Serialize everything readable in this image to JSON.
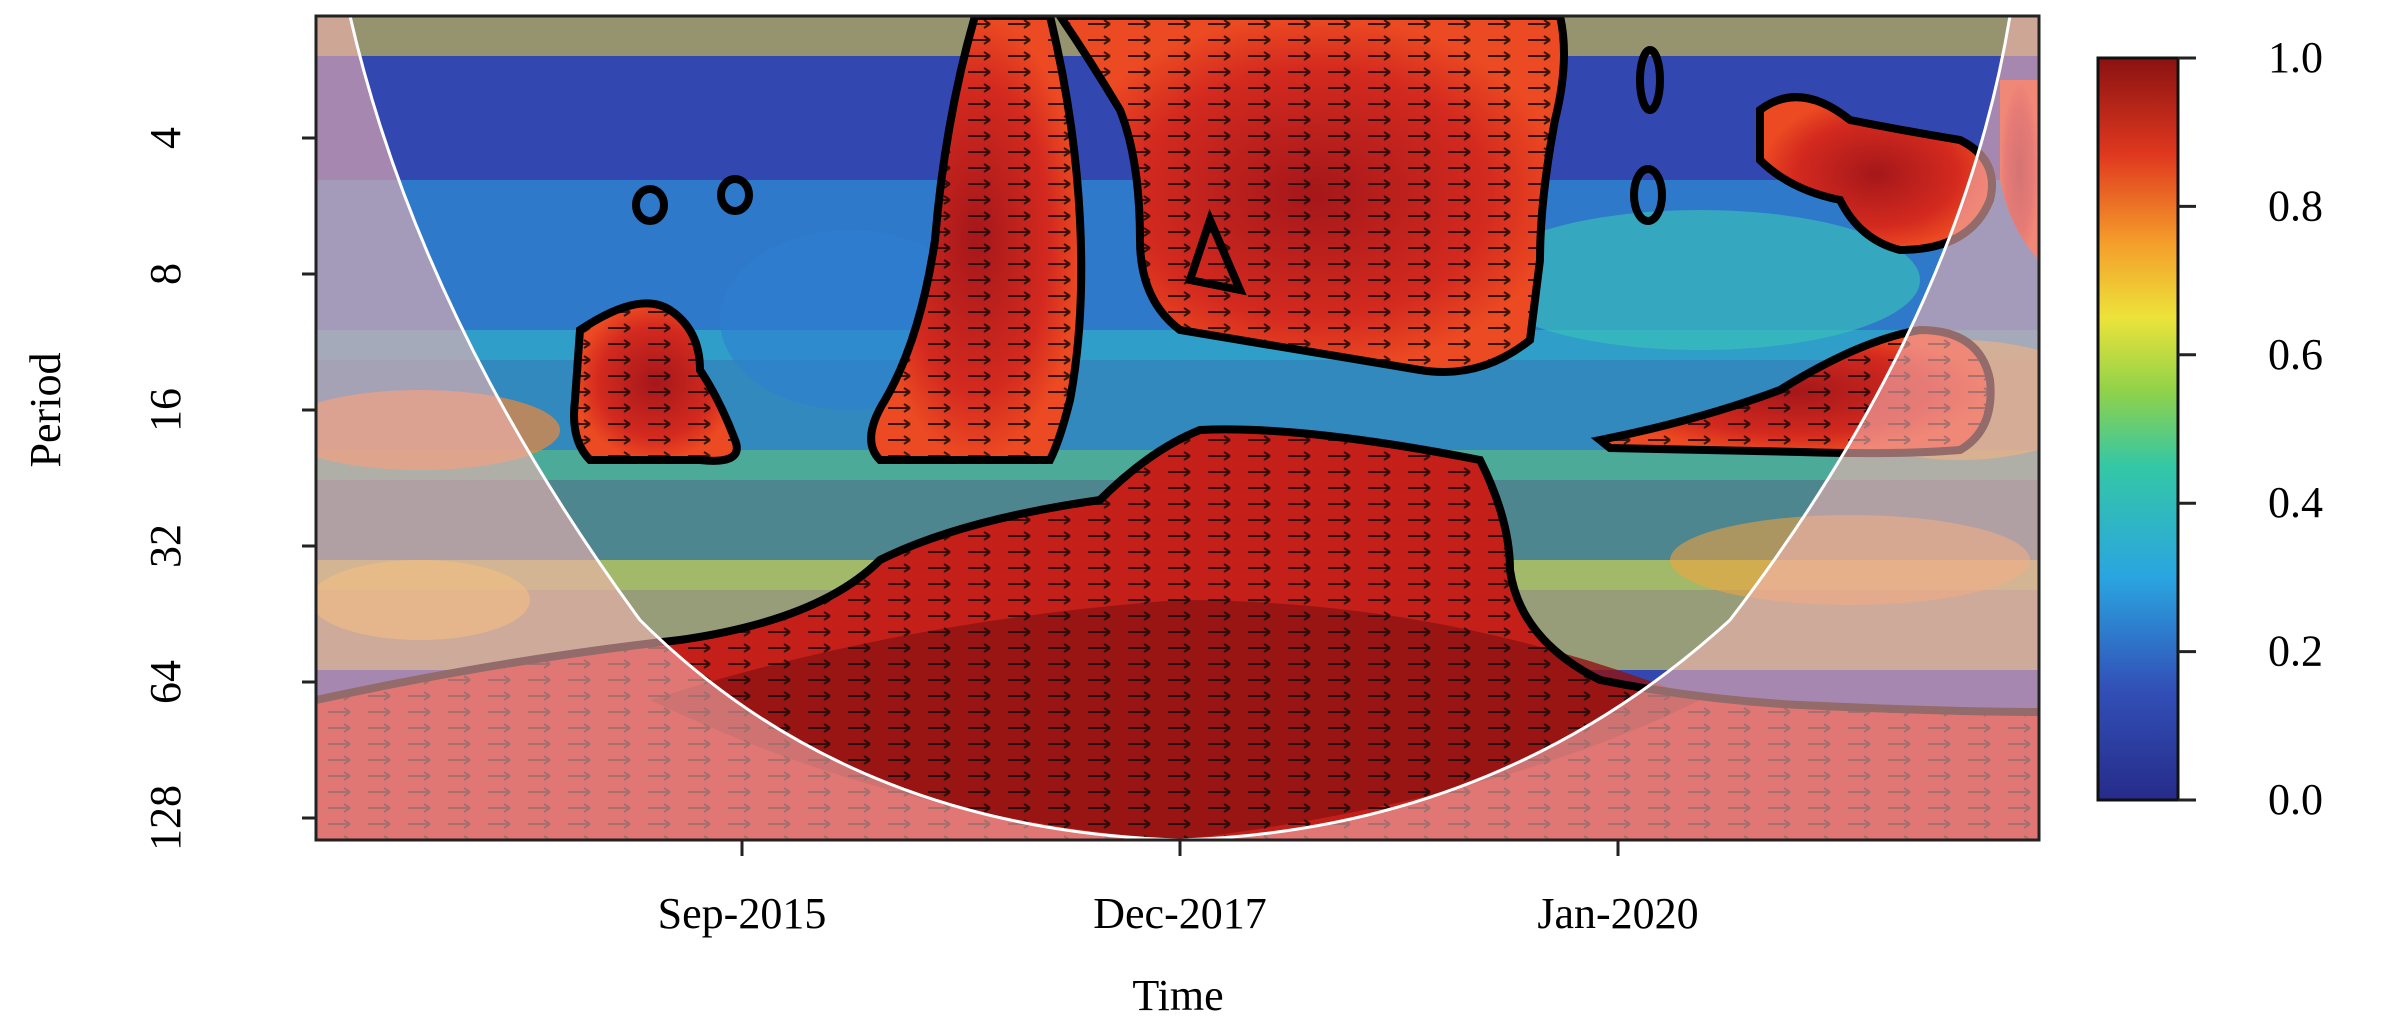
{
  "chart_data": {
    "type": "heatmap",
    "title": "",
    "xlabel": "Time",
    "ylabel": "Period",
    "x_ticks": [
      "Sep-2015",
      "Dec-2017",
      "Jan-2020"
    ],
    "y_ticks": [
      "4",
      "8",
      "16",
      "32",
      "64",
      "128"
    ],
    "y_scale": "log2",
    "colorbar": {
      "ticks": [
        "0.0",
        "0.2",
        "0.4",
        "0.6",
        "0.8",
        "1.0"
      ],
      "range": [
        0,
        1
      ],
      "colors": [
        "#2b2f8f",
        "#3a5fc8",
        "#26b5e6",
        "#36c98a",
        "#e6e33a",
        "#f39a2a",
        "#e03323",
        "#8e1414"
      ]
    },
    "regions": [
      {
        "desc": "period 64-128 band",
        "x_range": [
          "Sep-2014",
          "Jun-2022"
        ],
        "period_range": [
          64,
          128
        ],
        "coherence": 0.95
      },
      {
        "desc": "period 20-64 block",
        "x_range": [
          "Aug-2017",
          "Jun-2019"
        ],
        "period_range": [
          20,
          64
        ],
        "coherence": 0.95
      },
      {
        "desc": "period 1-16 column",
        "x_range": [
          "Jul-2016",
          "Apr-2017"
        ],
        "period_range": [
          1,
          16
        ],
        "coherence": 0.9
      },
      {
        "desc": "period 1-12 region",
        "x_range": [
          "Jan-2018",
          "Nov-2019"
        ],
        "period_range": [
          1,
          12
        ],
        "coherence": 0.9
      },
      {
        "desc": "period 10-16 island",
        "x_range": [
          "Apr-2015",
          "Oct-2015"
        ],
        "period_range": [
          10,
          16
        ],
        "coherence": 0.9
      },
      {
        "desc": "period 12-16 island",
        "x_range": [
          "Nov-2020",
          "Jul-2021"
        ],
        "period_range": [
          12,
          16
        ],
        "coherence": 0.9
      },
      {
        "desc": "period 3-6 island",
        "x_range": [
          "Mar-2021",
          "Feb-2022"
        ],
        "period_range": [
          3,
          6
        ],
        "coherence": 0.9
      }
    ]
  }
}
